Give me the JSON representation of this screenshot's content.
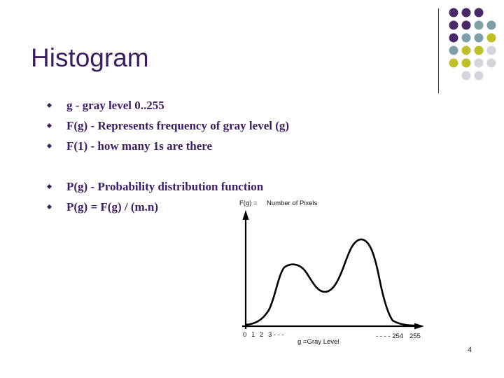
{
  "slide": {
    "title": "Histogram",
    "bullets": [
      "g - gray level 0..255",
      "F(g) - Represents frequency of gray level (g)",
      "F(1) - how many 1s are there",
      "P(g) - Probability distribution function",
      "P(g) = F(g) / (m.n)"
    ],
    "page_number": "4",
    "colors": {
      "title": "#3b1f5e",
      "dot_purple": "#4a2a66",
      "dot_teal": "#7f9fa8",
      "dot_olive": "#bfbf2a",
      "dot_gray": "#d4d4dc"
    }
  },
  "chart_data": {
    "type": "line",
    "y_label_prefix": "F(g) =",
    "y_label": "Number of Pixels",
    "x_tick_labels_left": [
      "0",
      "1",
      "2",
      "3 - - -"
    ],
    "x_tick_labels_right": [
      "- - - - 254",
      "255"
    ],
    "x_label": "g =Gray Level",
    "xlim": [
      0,
      255
    ],
    "curve_shape": "bimodal"
  }
}
